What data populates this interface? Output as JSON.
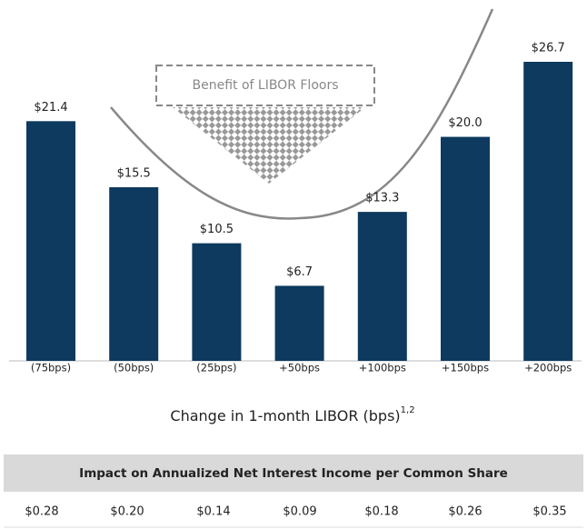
{
  "chart_data": {
    "type": "bar",
    "categories": [
      "(75bps)",
      "(50bps)",
      "(25bps)",
      "+50bps",
      "+100bps",
      "+150bps",
      "+200bps"
    ],
    "values": [
      21.4,
      15.5,
      10.5,
      6.7,
      13.3,
      20.0,
      26.7
    ],
    "value_labels": [
      "$21.4",
      "$15.5",
      "$10.5",
      "$6.7",
      "$13.3",
      "$20.0",
      "$26.7"
    ],
    "color": "#0d3a5e",
    "x_label": "Change in 1-month LIBOR (bps)",
    "x_label_superscript": "1,2",
    "annotation": "Benefit of LIBOR Floors"
  },
  "table": {
    "header": "Impact on Annualized Net Interest Income per Common Share",
    "rows": [
      [
        "$0.28",
        "$0.20",
        "$0.14",
        "$0.09",
        "$0.18",
        "$0.26",
        "$0.35"
      ]
    ]
  }
}
